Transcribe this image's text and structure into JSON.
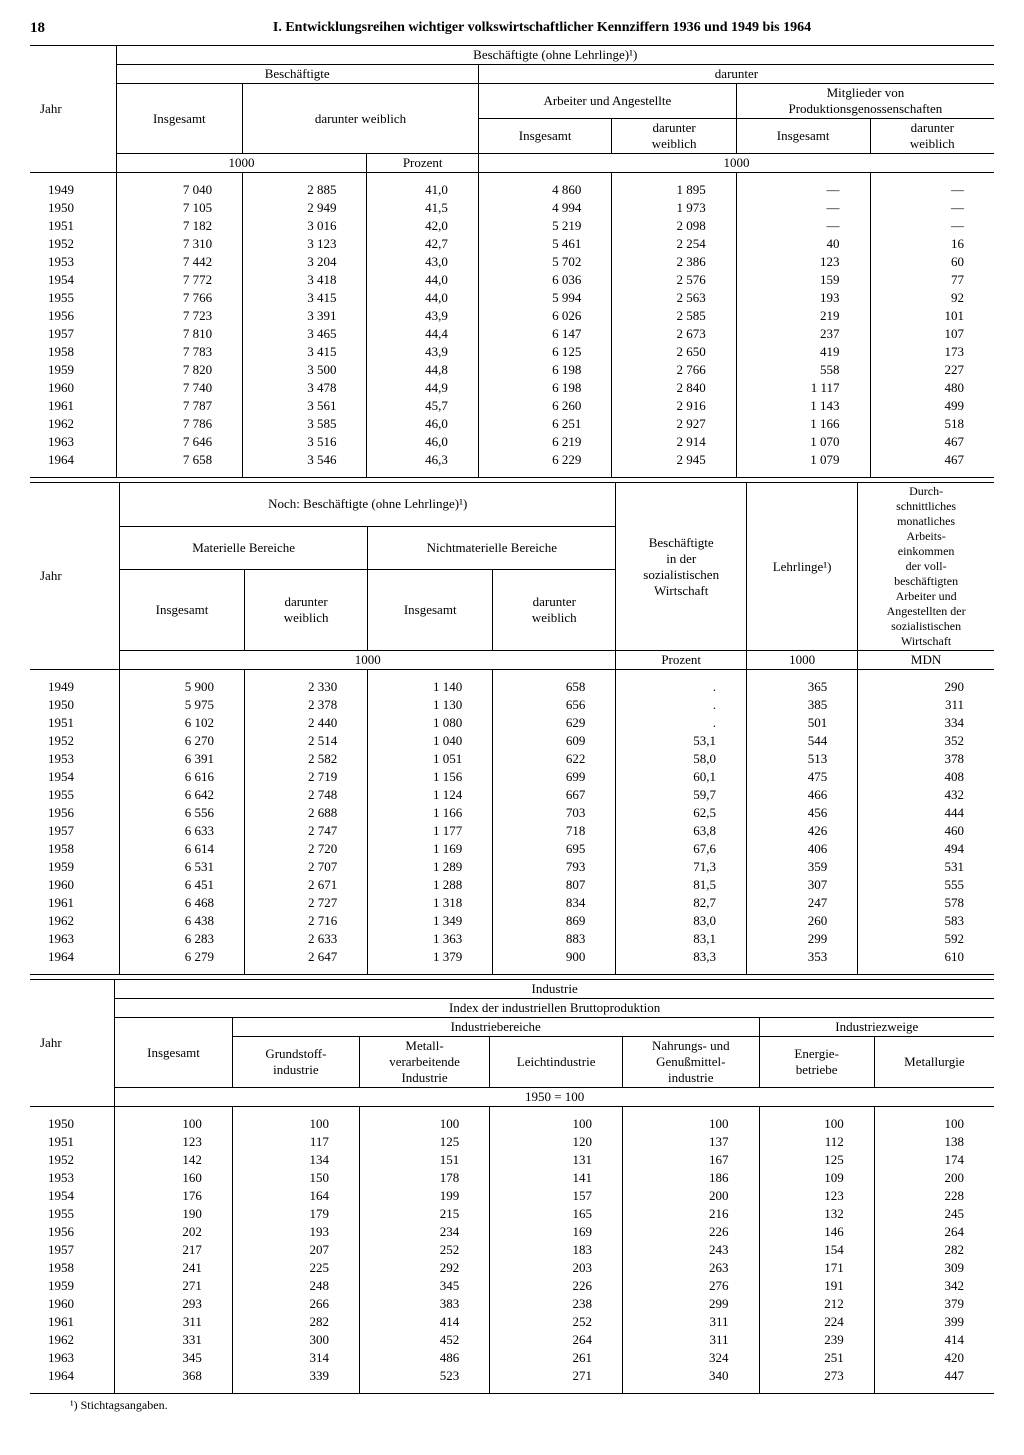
{
  "page": {
    "number": "18",
    "title": "I. Entwicklungsreihen wichtiger volkswirtschaftlicher Kennziffern 1936 und 1949 bis 1964"
  },
  "labels": {
    "jahr": "Jahr",
    "insgesamt": "Insgesamt",
    "darunter_weiblich": "darunter weiblich",
    "darunter_weiblich_short": "darunter\nweiblich",
    "tausend": "1000",
    "prozent": "Prozent",
    "mdn": "MDN",
    "darunter": "darunter",
    "footnote": "¹) Stichtagsangaben."
  },
  "table1": {
    "header_main": "Beschäftigte (ohne Lehrlinge)¹)",
    "header_besch": "Beschäftigte",
    "header_arb_ang": "Arbeiter und Angestellte",
    "header_mitgl": "Mitglieder von\nProduktionsgenossenschaften",
    "years": [
      "1949",
      "1950",
      "1951",
      "1952",
      "1953",
      "1954",
      "1955",
      "1956",
      "1957",
      "1958",
      "1959",
      "1960",
      "1961",
      "1962",
      "1963",
      "1964"
    ],
    "col_insgesamt": [
      "7 040",
      "7 105",
      "7 182",
      "7 310",
      "7 442",
      "7 772",
      "7 766",
      "7 723",
      "7 810",
      "7 783",
      "7 820",
      "7 740",
      "7 787",
      "7 786",
      "7 646",
      "7 658"
    ],
    "col_weibl_abs": [
      "2 885",
      "2 949",
      "3 016",
      "3 123",
      "3 204",
      "3 418",
      "3 415",
      "3 391",
      "3 465",
      "3 415",
      "3 500",
      "3 478",
      "3 561",
      "3 585",
      "3 516",
      "3 546"
    ],
    "col_weibl_pct": [
      "41,0",
      "41,5",
      "42,0",
      "42,7",
      "43,0",
      "44,0",
      "44,0",
      "43,9",
      "44,4",
      "43,9",
      "44,8",
      "44,9",
      "45,7",
      "46,0",
      "46,0",
      "46,3"
    ],
    "col_arb_ins": [
      "4 860",
      "4 994",
      "5 219",
      "5 461",
      "5 702",
      "6 036",
      "5 994",
      "6 026",
      "6 147",
      "6 125",
      "6 198",
      "6 198",
      "6 260",
      "6 251",
      "6 219",
      "6 229"
    ],
    "col_arb_weibl": [
      "1 895",
      "1 973",
      "2 098",
      "2 254",
      "2 386",
      "2 576",
      "2 563",
      "2 585",
      "2 673",
      "2 650",
      "2 766",
      "2 840",
      "2 916",
      "2 927",
      "2 914",
      "2 945"
    ],
    "col_mitgl_ins": [
      "—",
      "—",
      "—",
      "40",
      "123",
      "159",
      "193",
      "219",
      "237",
      "419",
      "558",
      "1 117",
      "1 143",
      "1 166",
      "1 070",
      "1 079"
    ],
    "col_mitgl_weibl": [
      "—",
      "—",
      "—",
      "16",
      "60",
      "77",
      "92",
      "101",
      "107",
      "173",
      "227",
      "480",
      "499",
      "518",
      "467",
      "467"
    ]
  },
  "table2": {
    "header_main": "Noch: Beschäftigte (ohne Lehrlinge)¹)",
    "header_mat": "Materielle Bereiche",
    "header_nichtmat": "Nichtmaterielle Bereiche",
    "header_soz": "Beschäftigte\nin der\nsozialistischen\nWirtschaft",
    "header_lehrl": "Lehrlinge¹)",
    "header_einkommen": "Durch-\nschnittliches\nmonatliches\nArbeits-\neinkommen\nder voll-\nbeschäftigten\nArbeiter und\nAngestellten der\nsozialistischen\nWirtschaft",
    "years": [
      "1949",
      "1950",
      "1951",
      "1952",
      "1953",
      "1954",
      "1955",
      "1956",
      "1957",
      "1958",
      "1959",
      "1960",
      "1961",
      "1962",
      "1963",
      "1964"
    ],
    "col_mat_ins": [
      "5 900",
      "5 975",
      "6 102",
      "6 270",
      "6 391",
      "6 616",
      "6 642",
      "6 556",
      "6 633",
      "6 614",
      "6 531",
      "6 451",
      "6 468",
      "6 438",
      "6 283",
      "6 279"
    ],
    "col_mat_weibl": [
      "2 330",
      "2 378",
      "2 440",
      "2 514",
      "2 582",
      "2 719",
      "2 748",
      "2 688",
      "2 747",
      "2 720",
      "2 707",
      "2 671",
      "2 727",
      "2 716",
      "2 633",
      "2 647"
    ],
    "col_nmat_ins": [
      "1 140",
      "1 130",
      "1 080",
      "1 040",
      "1 051",
      "1 156",
      "1 124",
      "1 166",
      "1 177",
      "1 169",
      "1 289",
      "1 288",
      "1 318",
      "1 349",
      "1 363",
      "1 379"
    ],
    "col_nmat_weibl": [
      "658",
      "656",
      "629",
      "609",
      "622",
      "699",
      "667",
      "703",
      "718",
      "695",
      "793",
      "807",
      "834",
      "869",
      "883",
      "900"
    ],
    "col_soz_pct": [
      ".",
      ".",
      ".",
      "53,1",
      "58,0",
      "60,1",
      "59,7",
      "62,5",
      "63,8",
      "67,6",
      "71,3",
      "81,5",
      "82,7",
      "83,0",
      "83,1",
      "83,3"
    ],
    "col_lehrl": [
      "365",
      "385",
      "501",
      "544",
      "513",
      "475",
      "466",
      "456",
      "426",
      "406",
      "359",
      "307",
      "247",
      "260",
      "299",
      "353"
    ],
    "col_eink": [
      "290",
      "311",
      "334",
      "352",
      "378",
      "408",
      "432",
      "444",
      "460",
      "494",
      "531",
      "555",
      "578",
      "583",
      "592",
      "610"
    ]
  },
  "table3": {
    "header_ind": "Industrie",
    "header_index": "Index der industriellen Bruttoproduktion",
    "header_bereiche": "Industriebereiche",
    "header_zweige": "Industriezweige",
    "col_labels": {
      "insgesamt": "Insgesamt",
      "grundstoff": "Grundstoff-\nindustrie",
      "metall": "Metall-\nverarbeitende\nIndustrie",
      "leicht": "Leichtindustrie",
      "nahrung": "Nahrungs- und\nGenußmittel-\nindustrie",
      "energie": "Energie-\nbetriebe",
      "metallurgie": "Metallurgie"
    },
    "base": "1950 = 100",
    "years": [
      "1950",
      "1951",
      "1952",
      "1953",
      "1954",
      "1955",
      "1956",
      "1957",
      "1958",
      "1959",
      "1960",
      "1961",
      "1962",
      "1963",
      "1964"
    ],
    "col_ins": [
      "100",
      "123",
      "142",
      "160",
      "176",
      "190",
      "202",
      "217",
      "241",
      "271",
      "293",
      "311",
      "331",
      "345",
      "368"
    ],
    "col_grund": [
      "100",
      "117",
      "134",
      "150",
      "164",
      "179",
      "193",
      "207",
      "225",
      "248",
      "266",
      "282",
      "300",
      "314",
      "339"
    ],
    "col_metall": [
      "100",
      "125",
      "151",
      "178",
      "199",
      "215",
      "234",
      "252",
      "292",
      "345",
      "383",
      "414",
      "452",
      "486",
      "523"
    ],
    "col_leicht": [
      "100",
      "120",
      "131",
      "141",
      "157",
      "165",
      "169",
      "183",
      "203",
      "226",
      "238",
      "252",
      "264",
      "261",
      "271"
    ],
    "col_nahr": [
      "100",
      "137",
      "167",
      "186",
      "200",
      "216",
      "226",
      "243",
      "263",
      "276",
      "299",
      "311",
      "311",
      "324",
      "340"
    ],
    "col_energie": [
      "100",
      "112",
      "125",
      "109",
      "123",
      "132",
      "146",
      "154",
      "171",
      "191",
      "212",
      "224",
      "239",
      "251",
      "273"
    ],
    "col_metallurgie": [
      "100",
      "138",
      "174",
      "200",
      "228",
      "245",
      "264",
      "282",
      "309",
      "342",
      "379",
      "399",
      "414",
      "420",
      "447"
    ]
  }
}
